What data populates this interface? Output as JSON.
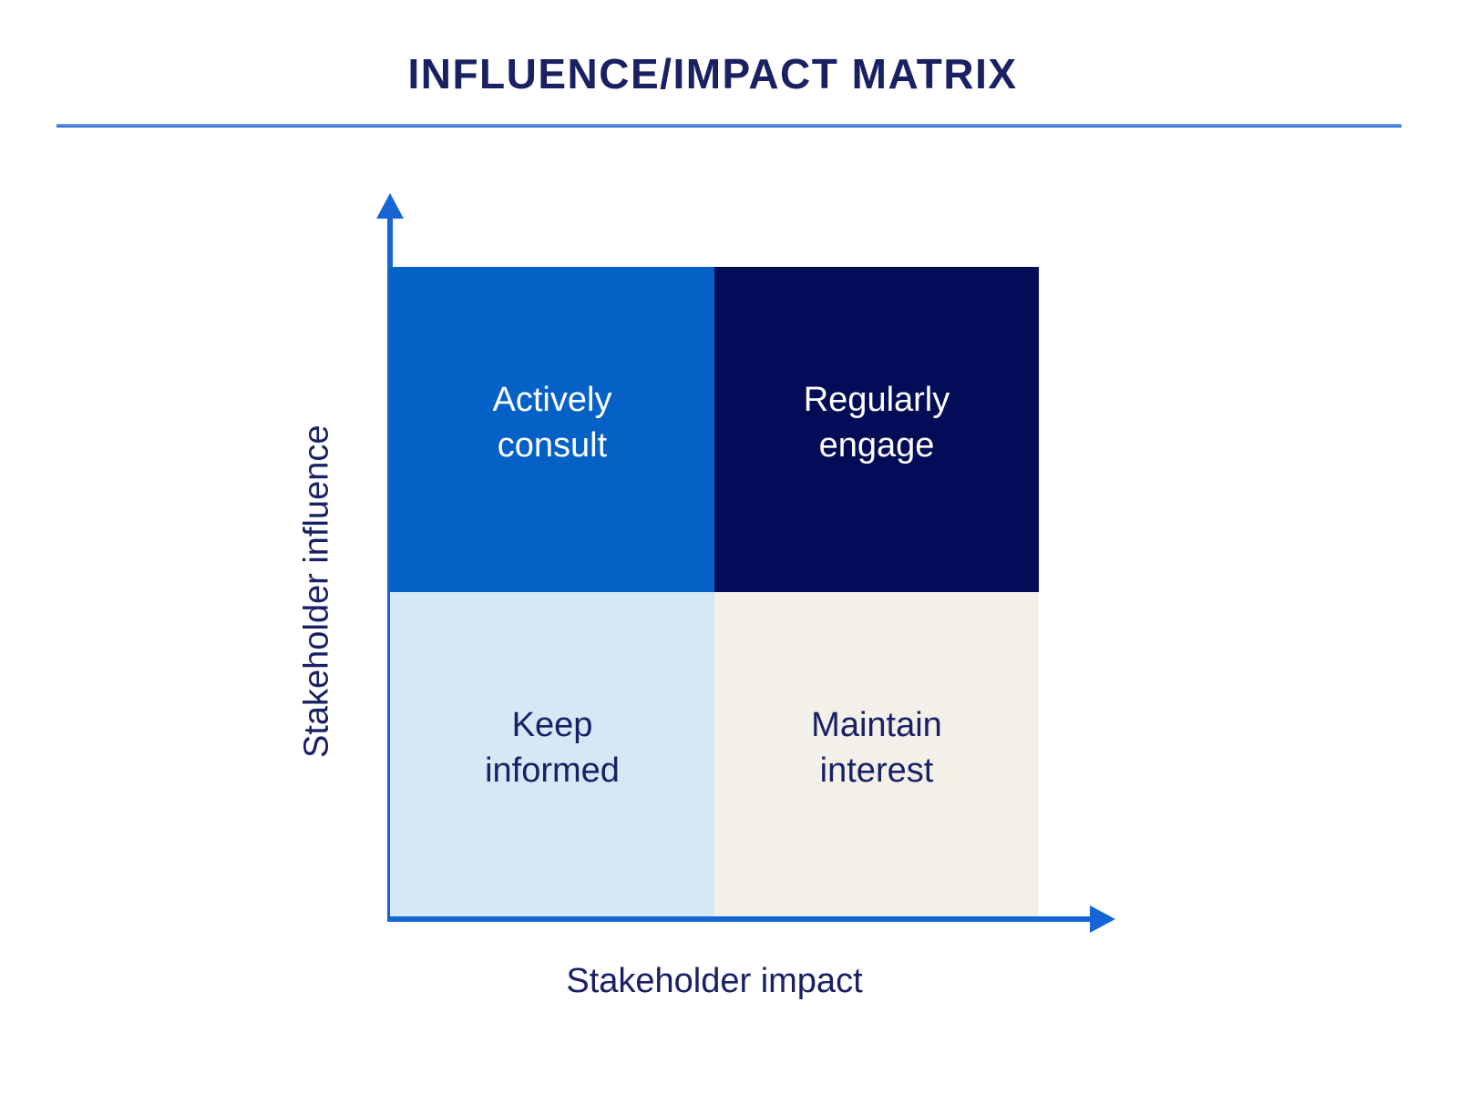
{
  "title": "INFLUENCE/IMPACT MATRIX",
  "axes": {
    "y_label": "Stakeholder influence",
    "x_label": "Stakeholder impact"
  },
  "quadrants": [
    {
      "position": "top-left",
      "label": "Actively consult",
      "lines": [
        "Actively",
        "consult"
      ],
      "bg": "#0561c6",
      "text_color": "#ffffff"
    },
    {
      "position": "top-right",
      "label": "Regularly engage",
      "lines": [
        "Regularly",
        "engage"
      ],
      "bg": "#020c57",
      "text_color": "#ffffff"
    },
    {
      "position": "bottom-left",
      "label": "Keep informed",
      "lines": [
        "Keep",
        "informed"
      ],
      "bg": "#d5e8f6",
      "text_color": "#1a2065"
    },
    {
      "position": "bottom-right",
      "label": "Maintain interest",
      "lines": [
        "Maintain",
        "interest"
      ],
      "bg": "#f2f0e9",
      "text_color": "#1a2065"
    }
  ],
  "colors": {
    "background": "#ffffff",
    "title": "#1a2163",
    "axis": "#1565d4",
    "axis_label": "#1a2065",
    "divider": "#2f6fd6"
  }
}
